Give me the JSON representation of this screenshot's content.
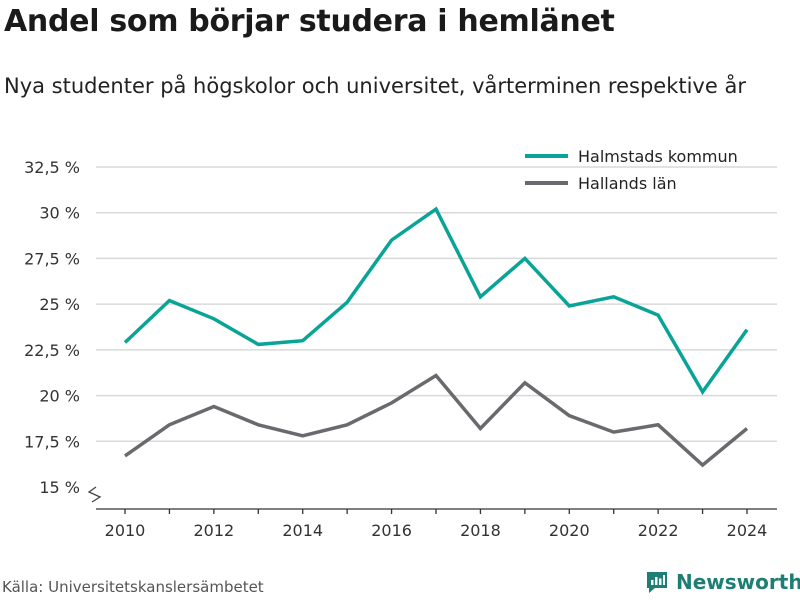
{
  "title": "Andel som börjar studera i hemlänet",
  "subtitle": "Nya studenter på högskolor och universitet, vårterminen respektive år",
  "source": "Källa: Universitetskanslersämbetet",
  "brand": "Newsworthy",
  "colors": {
    "halmstad": "#0aa398",
    "halland": "#6a6a6e",
    "grid": "#d9d9d9",
    "brand": "#1e7e73"
  },
  "chart_data": {
    "type": "line",
    "x": [
      2010,
      2011,
      2012,
      2013,
      2014,
      2015,
      2016,
      2017,
      2018,
      2019,
      2020,
      2021,
      2022,
      2023,
      2024
    ],
    "x_ticks": [
      "2010",
      "2012",
      "2014",
      "2016",
      "2018",
      "2020",
      "2022",
      "2024"
    ],
    "y_ticks": [
      "15 %",
      "17,5 %",
      "20 %",
      "22,5 %",
      "25 %",
      "27,5 %",
      "30 %",
      "32,5 %"
    ],
    "ylim": [
      15,
      32.5
    ],
    "y_axis_break": true,
    "grid": true,
    "legend_position": "top-right",
    "series": [
      {
        "name": "Halmstads kommun",
        "color": "#0aa398",
        "values": [
          22.9,
          25.2,
          24.2,
          22.8,
          23.0,
          25.1,
          28.5,
          30.2,
          25.4,
          27.5,
          24.9,
          25.4,
          24.4,
          20.2,
          23.6
        ]
      },
      {
        "name": "Hallands län",
        "color": "#6a6a6e",
        "values": [
          16.7,
          18.4,
          19.4,
          18.4,
          17.8,
          18.4,
          19.6,
          21.1,
          18.2,
          20.7,
          18.9,
          18.0,
          18.4,
          16.2,
          18.2
        ]
      }
    ]
  }
}
